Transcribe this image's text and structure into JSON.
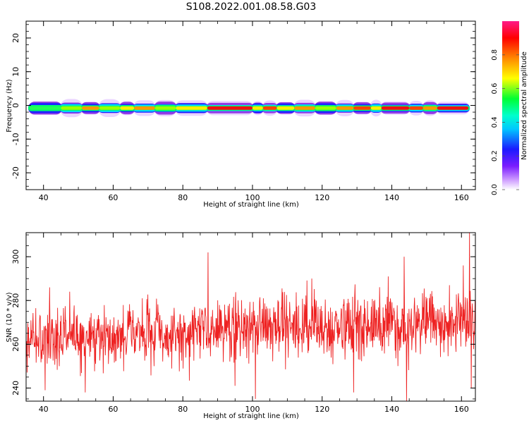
{
  "figure": {
    "title": "S108.2022.001.08.58.G03"
  },
  "colors": {
    "snr_line": "#ee2222",
    "spectrogram_rainbow": [
      "#ffffff",
      "#d9b3ff",
      "#8a2be2",
      "#2020ff",
      "#00d8ff",
      "#00ff66",
      "#ffff00",
      "#ff8800",
      "#ff0000",
      "#ff1a88"
    ]
  },
  "chart_data": [
    {
      "id": "spectrogram",
      "type": "heatmap",
      "xlabel": "Height of straight line (km)",
      "ylabel": "Frequency (Hz)",
      "xlim": [
        35,
        164
      ],
      "ylim": [
        -25,
        25
      ],
      "xticks": [
        40,
        60,
        80,
        100,
        120,
        140,
        160
      ],
      "yticks": [
        -20,
        -10,
        0,
        10,
        20
      ],
      "band_center_hz": -0.8,
      "segments": [
        {
          "x0": 36,
          "x1": 45,
          "level": 0.45
        },
        {
          "x0": 45,
          "x1": 51,
          "level": 0.5
        },
        {
          "x0": 51,
          "x1": 56,
          "level": 0.72
        },
        {
          "x0": 56,
          "x1": 62,
          "level": 0.5
        },
        {
          "x0": 62,
          "x1": 66,
          "level": 0.68
        },
        {
          "x0": 66,
          "x1": 72,
          "level": 0.7
        },
        {
          "x0": 72,
          "x1": 78,
          "level": 0.55
        },
        {
          "x0": 78,
          "x1": 87,
          "level": 0.6
        },
        {
          "x0": 87,
          "x1": 100,
          "level": 0.95
        },
        {
          "x0": 100,
          "x1": 103,
          "level": 0.6
        },
        {
          "x0": 103,
          "x1": 107,
          "level": 0.88
        },
        {
          "x0": 107,
          "x1": 112,
          "level": 0.65
        },
        {
          "x0": 112,
          "x1": 118,
          "level": 0.72
        },
        {
          "x0": 118,
          "x1": 124,
          "level": 0.5
        },
        {
          "x0": 124,
          "x1": 129,
          "level": 0.75
        },
        {
          "x0": 129,
          "x1": 134,
          "level": 0.8
        },
        {
          "x0": 134,
          "x1": 137,
          "level": 0.6
        },
        {
          "x0": 137,
          "x1": 145,
          "level": 0.92
        },
        {
          "x0": 145,
          "x1": 149,
          "level": 0.8
        },
        {
          "x0": 149,
          "x1": 153,
          "level": 0.7
        },
        {
          "x0": 153,
          "x1": 162,
          "level": 0.95
        }
      ],
      "colorbar": {
        "label": "Normalized spectral amplitude",
        "range": [
          0,
          1
        ],
        "ticks": [
          {
            "value": 0.0,
            "label": "0.0"
          },
          {
            "value": 0.2,
            "label": "0.2"
          },
          {
            "value": 0.4,
            "label": "0.4"
          },
          {
            "value": 0.6,
            "label": "0.6"
          },
          {
            "value": 0.8,
            "label": "0.8"
          }
        ]
      }
    },
    {
      "id": "snr",
      "type": "line",
      "xlabel": "Height of straight line (km)",
      "ylabel": "SNR (10 * v/v)",
      "xlim": [
        35,
        164
      ],
      "ylim": [
        234,
        311
      ],
      "xticks": [
        40,
        60,
        80,
        100,
        120,
        140,
        160
      ],
      "yticks": [
        240,
        260,
        280,
        300
      ],
      "series": [
        {
          "x_start": 35,
          "x_end": 164,
          "n_points": 1300,
          "trend": [
            {
              "x": 35,
              "y": 262
            },
            {
              "x": 60,
              "y": 264
            },
            {
              "x": 80,
              "y": 266
            },
            {
              "x": 100,
              "y": 268
            },
            {
              "x": 120,
              "y": 268
            },
            {
              "x": 140,
              "y": 269
            },
            {
              "x": 164,
              "y": 270
            }
          ],
          "noise_sd": 7,
          "spikes": [
            {
              "x": 40.5,
              "y": 239
            },
            {
              "x": 41.8,
              "y": 286
            },
            {
              "x": 52,
              "y": 238
            },
            {
              "x": 87.2,
              "y": 302
            },
            {
              "x": 95,
              "y": 241
            },
            {
              "x": 100.8,
              "y": 235
            },
            {
              "x": 117,
              "y": 290
            },
            {
              "x": 129,
              "y": 238
            },
            {
              "x": 139,
              "y": 291
            },
            {
              "x": 143.5,
              "y": 300
            },
            {
              "x": 144.2,
              "y": 234
            },
            {
              "x": 160.5,
              "y": 296
            },
            {
              "x": 162.3,
              "y": 311
            },
            {
              "x": 162.8,
              "y": 240
            }
          ]
        }
      ]
    }
  ]
}
